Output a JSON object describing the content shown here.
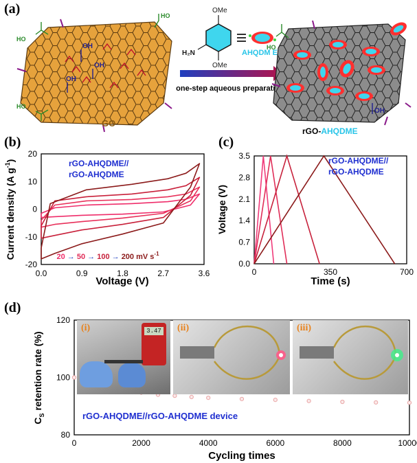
{
  "panels": {
    "a": {
      "label": "(a)",
      "go_label": "GO",
      "group_labels": {
        "cooh": "HO",
        "oh": "OH",
        "o": "O",
        "ome": "OMe",
        "h2n": "H₂N"
      },
      "molecule_name": "AHQDM E",
      "arrow_text": "one-step aqueous preparation",
      "product_prefix": "rGO-",
      "product_suffix": "AHQDME",
      "colors": {
        "go": "#e6a23c",
        "rgo": "#8c8c8c",
        "arrow_start": "#1f3fbf",
        "arrow_end": "#b4124a",
        "mol": "#3fd6ee",
        "ring": "#ff3030"
      }
    },
    "b": {
      "label": "(b)",
      "legend": [
        "rGO-AHQDME//",
        "rGO-AHQDME"
      ],
      "rate_values": [
        "20",
        "50",
        "100",
        "200"
      ],
      "rate_unit": "mV s",
      "rate_sup": "-1",
      "ylabel_main": "Current density (A g",
      "ylabel_sup": "-1",
      "ylabel_end": ")",
      "xlabel": "Voltage (V)",
      "xticks": [
        "0.0",
        "0.9",
        "1.8",
        "2.7",
        "3.6"
      ],
      "yticks": [
        "-20",
        "-10",
        "0",
        "10",
        "20"
      ]
    },
    "c": {
      "label": "(c)",
      "legend": [
        "rGO-AHQDME//",
        "rGO-AHQDME"
      ],
      "ylabel": "Voltage (V)",
      "xlabel": "Time (s)",
      "xticks": [
        "0",
        "350",
        "700"
      ],
      "yticks": [
        "0.0",
        "0.7",
        "1.4",
        "2.1",
        "2.8",
        "3.5"
      ]
    },
    "d": {
      "label": "(d)",
      "ylabel_main": "C",
      "ylabel_sub": "S",
      "ylabel_end": " retention rate (%)",
      "xlabel": "Cycling times",
      "xticks": [
        "0",
        "2000",
        "4000",
        "6000",
        "8000",
        "10000"
      ],
      "yticks": [
        "80",
        "100",
        "120"
      ],
      "device_label": "rGO-AHQDME//rGO-AHQDME device",
      "photo_tags": [
        "(i)",
        "(ii)",
        "(iii)"
      ],
      "meter_reading": "3.47"
    }
  },
  "chart_data": [
    {
      "type": "line",
      "panel": "b",
      "xlabel": "Voltage (V)",
      "ylabel": "Current density (A g-1)",
      "xlim": [
        0,
        3.6
      ],
      "ylim": [
        -20,
        20
      ],
      "series": [
        {
          "name": "20",
          "color": "#ef2d6a",
          "upper": [
            [
              0,
              -1.5
            ],
            [
              0.3,
              0.5
            ],
            [
              1.0,
              1.5
            ],
            [
              2.0,
              2.0
            ],
            [
              2.8,
              2.7
            ],
            [
              3.2,
              3.6
            ],
            [
              3.5,
              5.5
            ]
          ],
          "lower": [
            [
              3.5,
              5.5
            ],
            [
              3.3,
              1.5
            ],
            [
              2.7,
              -1.0
            ],
            [
              1.8,
              -1.8
            ],
            [
              0.9,
              -2.2
            ],
            [
              0.3,
              -2.7
            ],
            [
              0,
              -3.0
            ],
            [
              0,
              -1.5
            ]
          ]
        },
        {
          "name": "50",
          "color": "#e8305a",
          "upper": [
            [
              0,
              -4
            ],
            [
              0.3,
              1.5
            ],
            [
              1.0,
              3
            ],
            [
              2.0,
              3.5
            ],
            [
              2.8,
              4.5
            ],
            [
              3.2,
              5.5
            ],
            [
              3.5,
              8
            ]
          ],
          "lower": [
            [
              3.5,
              8
            ],
            [
              3.3,
              3
            ],
            [
              2.7,
              -1.5
            ],
            [
              1.8,
              -3.2
            ],
            [
              0.9,
              -4.5
            ],
            [
              0.3,
              -5.5
            ],
            [
              0,
              -6.5
            ],
            [
              0,
              -4
            ]
          ]
        },
        {
          "name": "100",
          "color": "#c8203a",
          "upper": [
            [
              0,
              -6
            ],
            [
              0.3,
              3
            ],
            [
              1.0,
              4.5
            ],
            [
              2.0,
              5.5
            ],
            [
              2.8,
              7
            ],
            [
              3.2,
              8.5
            ],
            [
              3.5,
              11.5
            ]
          ],
          "lower": [
            [
              3.5,
              11.5
            ],
            [
              3.3,
              5
            ],
            [
              2.7,
              -3
            ],
            [
              1.8,
              -5.5
            ],
            [
              0.9,
              -7.5
            ],
            [
              0.3,
              -9.5
            ],
            [
              0,
              -10.5
            ],
            [
              0,
              -6
            ]
          ]
        },
        {
          "name": "200",
          "color": "#8b1a1a",
          "upper": [
            [
              0,
              -14
            ],
            [
              0.2,
              2
            ],
            [
              1.0,
              7
            ],
            [
              2.0,
              9
            ],
            [
              2.8,
              11
            ],
            [
              3.2,
              13
            ],
            [
              3.5,
              16.5
            ]
          ],
          "lower": [
            [
              3.5,
              16.5
            ],
            [
              3.3,
              8
            ],
            [
              2.7,
              -5
            ],
            [
              1.8,
              -9
            ],
            [
              0.9,
              -12.5
            ],
            [
              0.3,
              -16
            ],
            [
              0,
              -18
            ],
            [
              0,
              -14
            ]
          ]
        }
      ]
    },
    {
      "type": "line",
      "panel": "c",
      "xlabel": "Time (s)",
      "ylabel": "Voltage (V)",
      "xlim": [
        0,
        700
      ],
      "ylim": [
        0,
        3.5
      ],
      "series": [
        {
          "color": "#f03a7a",
          "x": [
            0,
            42,
            90
          ],
          "y": [
            0,
            3.5,
            0
          ]
        },
        {
          "color": "#e02d58",
          "x": [
            0,
            75,
            150
          ],
          "y": [
            0,
            3.5,
            0
          ]
        },
        {
          "color": "#c7223c",
          "x": [
            0,
            150,
            300
          ],
          "y": [
            0,
            3.5,
            0
          ]
        },
        {
          "color": "#8b1a1a",
          "x": [
            0,
            320,
            645
          ],
          "y": [
            0,
            3.5,
            0
          ]
        }
      ]
    },
    {
      "type": "scatter",
      "panel": "d",
      "xlabel": "Cycling times",
      "ylabel": "CS retention rate (%)",
      "xlim": [
        0,
        10000
      ],
      "ylim": [
        80,
        120
      ],
      "series": [
        {
          "name": "rGO-AHQDME//rGO-AHQDME device",
          "color": "#e9a5a5",
          "x": [
            0,
            500,
            1000,
            1500,
            2000,
            2500,
            3000,
            3500,
            4000,
            5000,
            6000,
            7000,
            8000,
            9000,
            10000
          ],
          "y": [
            100,
            98.4,
            96.9,
            95.6,
            94.7,
            94.0,
            93.6,
            93.2,
            92.9,
            92.5,
            92.2,
            91.8,
            91.5,
            91.3,
            91.2
          ]
        }
      ]
    }
  ]
}
